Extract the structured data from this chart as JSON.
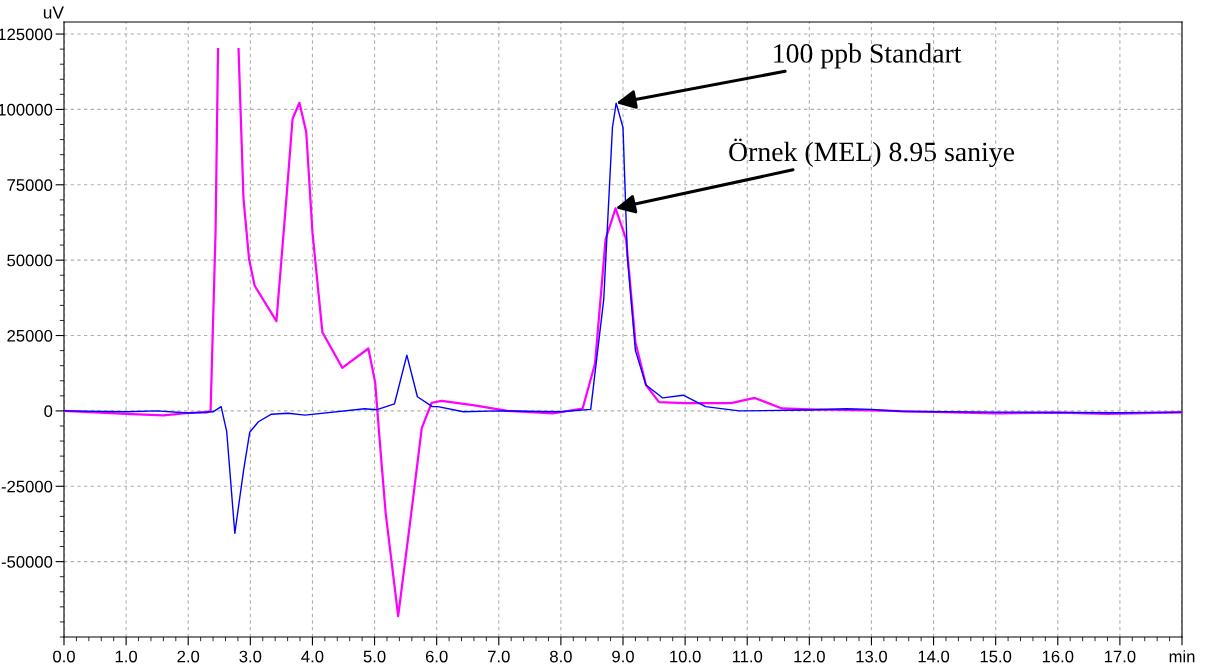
{
  "chart_data": {
    "type": "line",
    "ylabel": "uV",
    "xlim": [
      0,
      18
    ],
    "ylim": [
      -75000,
      129000
    ],
    "xticks": [
      {
        "value": 0,
        "label": "0.0"
      },
      {
        "value": 1,
        "label": "1.0"
      },
      {
        "value": 2,
        "label": "2.0"
      },
      {
        "value": 3,
        "label": "3.0"
      },
      {
        "value": 4,
        "label": "4.0"
      },
      {
        "value": 5,
        "label": "5.0"
      },
      {
        "value": 6,
        "label": "6.0"
      },
      {
        "value": 7,
        "label": "7.0"
      },
      {
        "value": 8,
        "label": "8.0"
      },
      {
        "value": 9,
        "label": "9.0"
      },
      {
        "value": 10,
        "label": "10.0"
      },
      {
        "value": 11,
        "label": "11.0"
      },
      {
        "value": 12,
        "label": "12.0"
      },
      {
        "value": 13,
        "label": "13.0"
      },
      {
        "value": 14,
        "label": "14.0"
      },
      {
        "value": 15,
        "label": "15.0"
      },
      {
        "value": 16,
        "label": "16.0"
      },
      {
        "value": 17,
        "label": "17.0"
      },
      {
        "value": 18,
        "label": "min"
      }
    ],
    "yticks": [
      -50000,
      -25000,
      0,
      25000,
      50000,
      75000,
      100000,
      125000
    ],
    "grid": true,
    "legend": false,
    "marker": "none",
    "line_style": "solid",
    "series": [
      {
        "color": "#ff00ff",
        "x": [
          0,
          1.0,
          1.6,
          2.0,
          2.3,
          2.36,
          2.44,
          2.48,
          2.65,
          2.81,
          2.89,
          2.98,
          3.07,
          3.42,
          3.58,
          3.68,
          3.79,
          3.9,
          4.0,
          4.16,
          4.48,
          4.9,
          5.01,
          5.09,
          5.18,
          5.38,
          5.59,
          5.76,
          5.92,
          6.08,
          6.61,
          7.14,
          7.87,
          8.35,
          8.55,
          8.72,
          8.88,
          9.05,
          9.2,
          9.37,
          9.58,
          9.99,
          10.74,
          11.12,
          11.56,
          12.0,
          13.0,
          14.0,
          15.0,
          16.0,
          16.8,
          18.0
        ],
        "values": [
          0,
          -1000,
          -1500,
          -700,
          -500,
          0,
          59300,
          120000,
          null,
          120000,
          70300,
          50300,
          41500,
          29800,
          70300,
          96900,
          102200,
          92500,
          59300,
          26100,
          14300,
          20700,
          9400,
          -11700,
          -34100,
          -68100,
          -34100,
          -5700,
          2700,
          3300,
          1800,
          0,
          -800,
          800,
          15700,
          57000,
          67200,
          57000,
          22800,
          8600,
          2900,
          2600,
          2600,
          4300,
          800,
          500,
          200,
          -300,
          -800,
          -600,
          -1000,
          -500
        ]
      },
      {
        "color": "#0000ff",
        "x": [
          0,
          1.0,
          1.5,
          2.0,
          2.4,
          2.53,
          2.62,
          2.75,
          2.89,
          2.99,
          3.13,
          3.34,
          3.61,
          3.88,
          4.84,
          5.04,
          5.32,
          5.52,
          5.69,
          5.93,
          6.02,
          6.43,
          7.0,
          8.0,
          8.48,
          8.69,
          8.83,
          8.89,
          9.0,
          9.07,
          9.2,
          9.37,
          9.64,
          9.97,
          10.33,
          10.87,
          12.0,
          12.6,
          13.0,
          13.5,
          15.0,
          17.0,
          18.0
        ],
        "values": [
          0,
          -300,
          0,
          -700,
          -300,
          1400,
          -6900,
          -40600,
          -19900,
          -7100,
          -3600,
          -1100,
          -800,
          -1400,
          700,
          400,
          2300,
          18500,
          4700,
          1400,
          1400,
          -300,
          0,
          -300,
          500,
          37000,
          94000,
          102100,
          94000,
          51300,
          20000,
          8600,
          4300,
          5200,
          1400,
          0,
          300,
          700,
          500,
          -200,
          -400,
          -600,
          -400
        ]
      }
    ],
    "annotations": [
      {
        "text": "100 ppb Standart",
        "x": 8.89,
        "y": 102100
      },
      {
        "text": "Örnek (MEL) 8.95 saniye",
        "x": 8.88,
        "y": 67200
      }
    ]
  }
}
